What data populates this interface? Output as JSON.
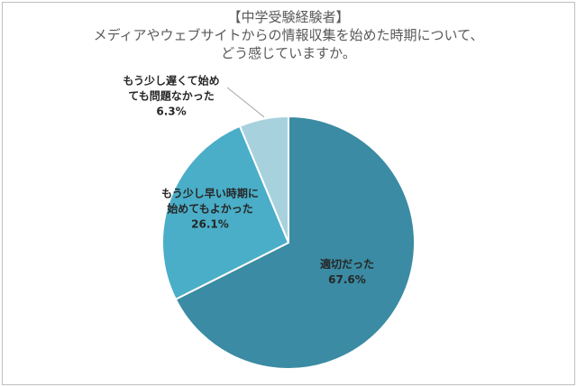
{
  "title_lines": [
    "【中学受験経験者】",
    "メディアやウェブサイトからの情報収集を始めた時期について、",
    "どう感じていますか。"
  ],
  "chart_data": {
    "type": "pie",
    "title": "【中学受験経験者】メディアやウェブサイトからの情報収集を始めた時期について、どう感じていますか。",
    "start_angle": "12 o'clock",
    "direction": "clockwise",
    "slices": [
      {
        "label_lines": [
          "適切だった"
        ],
        "value": 67.6,
        "value_label": "67.6%",
        "color": "#3a8ba3",
        "label_position": "inside",
        "text_color": "#262626"
      },
      {
        "label_lines": [
          "もう少し早い時期に",
          "始めてもよかった"
        ],
        "value": 26.1,
        "value_label": "26.1%",
        "color": "#4aaec8",
        "label_position": "inside",
        "text_color": "#262626"
      },
      {
        "label_lines": [
          "もう少し遅くて始め",
          "ても問題なかった"
        ],
        "value": 6.3,
        "value_label": "6.3%",
        "color": "#a8d1de",
        "label_position": "outside-left",
        "text_color": "#262626"
      }
    ],
    "leader_line_color": "#a6a6a6",
    "slice_border_color": "#ffffff"
  }
}
